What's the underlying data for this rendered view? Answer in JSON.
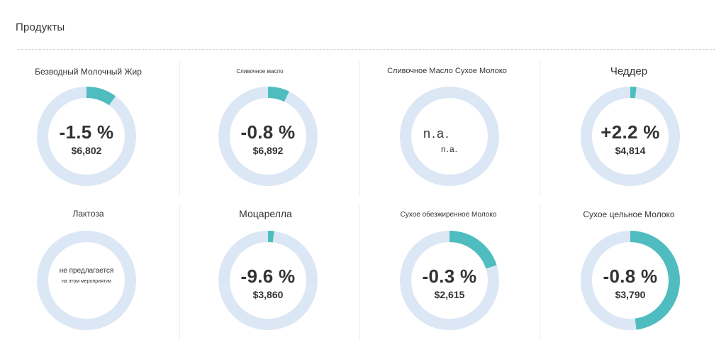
{
  "header": {
    "title": "Продукты"
  },
  "colors": {
    "track": "#dce7f5",
    "fill": "#4fbdbf",
    "text": "#333333"
  },
  "cards": [
    {
      "title": "Безводный Молочный Жир",
      "change": "-1.5 %",
      "price": "$6,802",
      "fill_fraction": 0.1
    },
    {
      "title": "Сливочное масло",
      "change": "-0.8 %",
      "price": "$6,892",
      "fill_fraction": 0.07
    },
    {
      "title": "Сливочное Масло Сухое Молоко",
      "na_main": "n.a.",
      "na_sub": "n.a.",
      "fill_fraction": 0
    },
    {
      "title": "Чеддер",
      "change": "+2.2 %",
      "price": "$4,814",
      "fill_fraction": 0.02
    },
    {
      "title": "Лактоза",
      "np_main": "не предлагается",
      "np_sub": "на этом мероприятии",
      "fill_fraction": 0
    },
    {
      "title": "Моцарелла",
      "change": "-9.6 %",
      "price": "$3,860",
      "fill_fraction": 0.02
    },
    {
      "title": "Сухое обезжиренное Молоко",
      "change": "-0.3 %",
      "price": "$2,615",
      "fill_fraction": 0.2
    },
    {
      "title": "Сухое цельное Молоко",
      "change": "-0.8 %",
      "price": "$3,790",
      "fill_fraction": 0.48
    }
  ]
}
